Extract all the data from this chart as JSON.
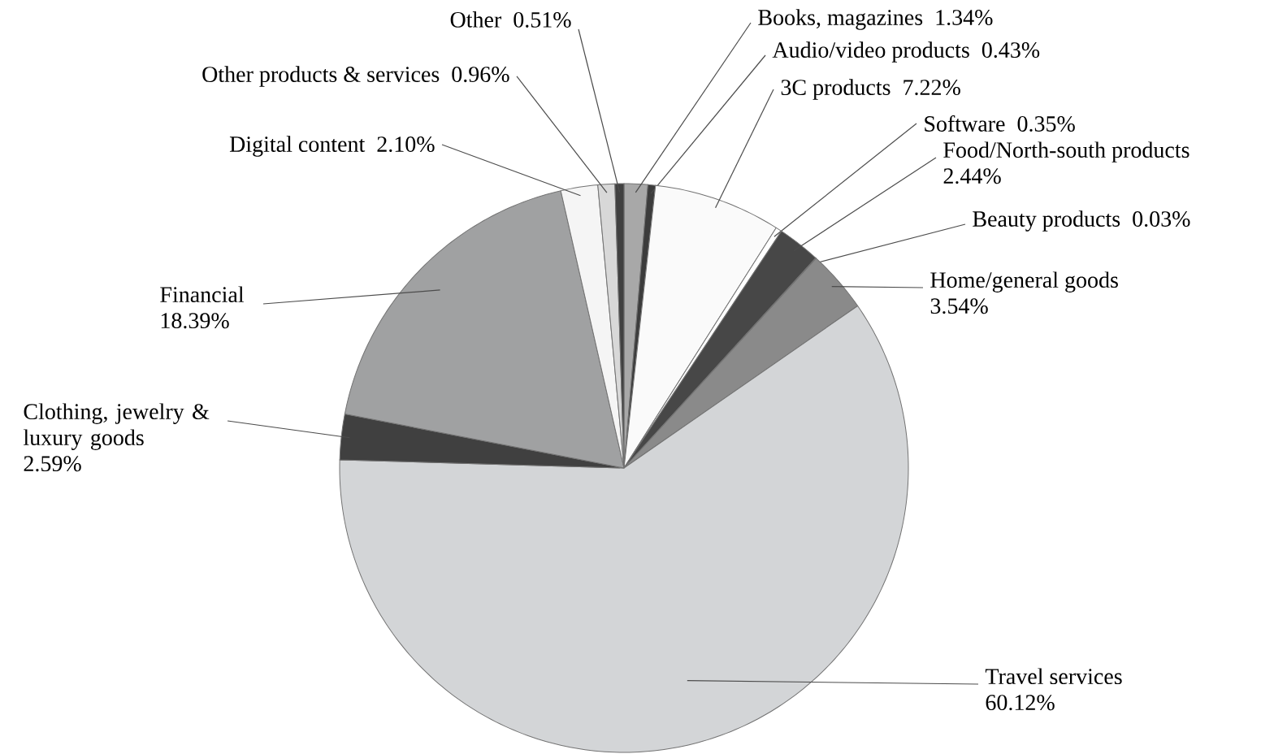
{
  "chart_data": {
    "type": "pie",
    "categories": [
      "Books, magazines",
      "Audio/video products",
      "3C products",
      "Software",
      "Food/North-south products",
      "Beauty products",
      "Home/general goods",
      "Travel services",
      "Clothing, jewelry & luxury goods",
      "Financial",
      "Digital content",
      "Other products & services",
      "Other"
    ],
    "values": [
      1.34,
      0.43,
      7.22,
      0.35,
      2.44,
      0.03,
      3.54,
      60.12,
      2.59,
      18.39,
      2.1,
      0.96,
      0.51
    ],
    "value_labels": [
      "1.34%",
      "0.43%",
      "7.22%",
      "0.35%",
      "2.44%",
      "0.03%",
      "3.54%",
      "60.12%",
      "2.59%",
      "18.39%",
      "2.10%",
      "0.96%",
      "0.51%"
    ],
    "colors": [
      "#a8a8a8",
      "#3c3c3c",
      "#fafafa",
      "#ffffff",
      "#474747",
      "#555555",
      "#8a8a8a",
      "#d3d5d7",
      "#404040",
      "#a0a1a2",
      "#f5f5f5",
      "#d8d8d8",
      "#404040"
    ]
  }
}
